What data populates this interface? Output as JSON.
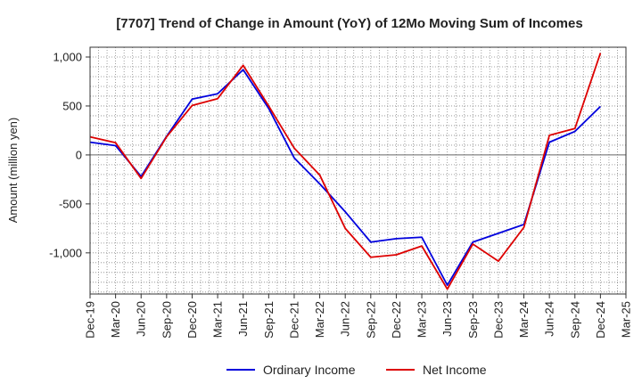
{
  "chart_data": {
    "type": "line",
    "title": "[7707]  Trend of Change in Amount (YoY) of 12Mo Moving Sum of Incomes",
    "xlabel": "",
    "ylabel": "Amount (million yen)",
    "ylim": [
      -1420,
      1100
    ],
    "yticks": [
      1000,
      500,
      0,
      -500,
      -1000
    ],
    "ytick_labels": [
      "1,000",
      "500",
      "0",
      "-500",
      "-1,000"
    ],
    "grid": true,
    "legend_position": "bottom-center",
    "categories": [
      "Dec-19",
      "Mar-20",
      "Jun-20",
      "Sep-20",
      "Dec-20",
      "Mar-21",
      "Jun-21",
      "Sep-21",
      "Dec-21",
      "Mar-22",
      "Jun-22",
      "Sep-22",
      "Dec-22",
      "Mar-23",
      "Jun-23",
      "Sep-23",
      "Dec-23",
      "Mar-24",
      "Jun-24",
      "Sep-24",
      "Dec-24",
      "Mar-25"
    ],
    "series": [
      {
        "name": "Ordinary Income",
        "color": "#0000dd",
        "values": [
          130,
          95,
          -220,
          190,
          570,
          625,
          870,
          475,
          -30,
          -295,
          -580,
          -890,
          -855,
          -840,
          -1330,
          -890,
          -800,
          -710,
          130,
          240,
          495,
          null
        ]
      },
      {
        "name": "Net Income",
        "color": "#dd0000",
        "values": [
          185,
          125,
          -240,
          185,
          505,
          575,
          915,
          500,
          70,
          -205,
          -750,
          -1045,
          -1020,
          -930,
          -1370,
          -910,
          -1085,
          -740,
          200,
          270,
          1040,
          null
        ]
      }
    ]
  }
}
